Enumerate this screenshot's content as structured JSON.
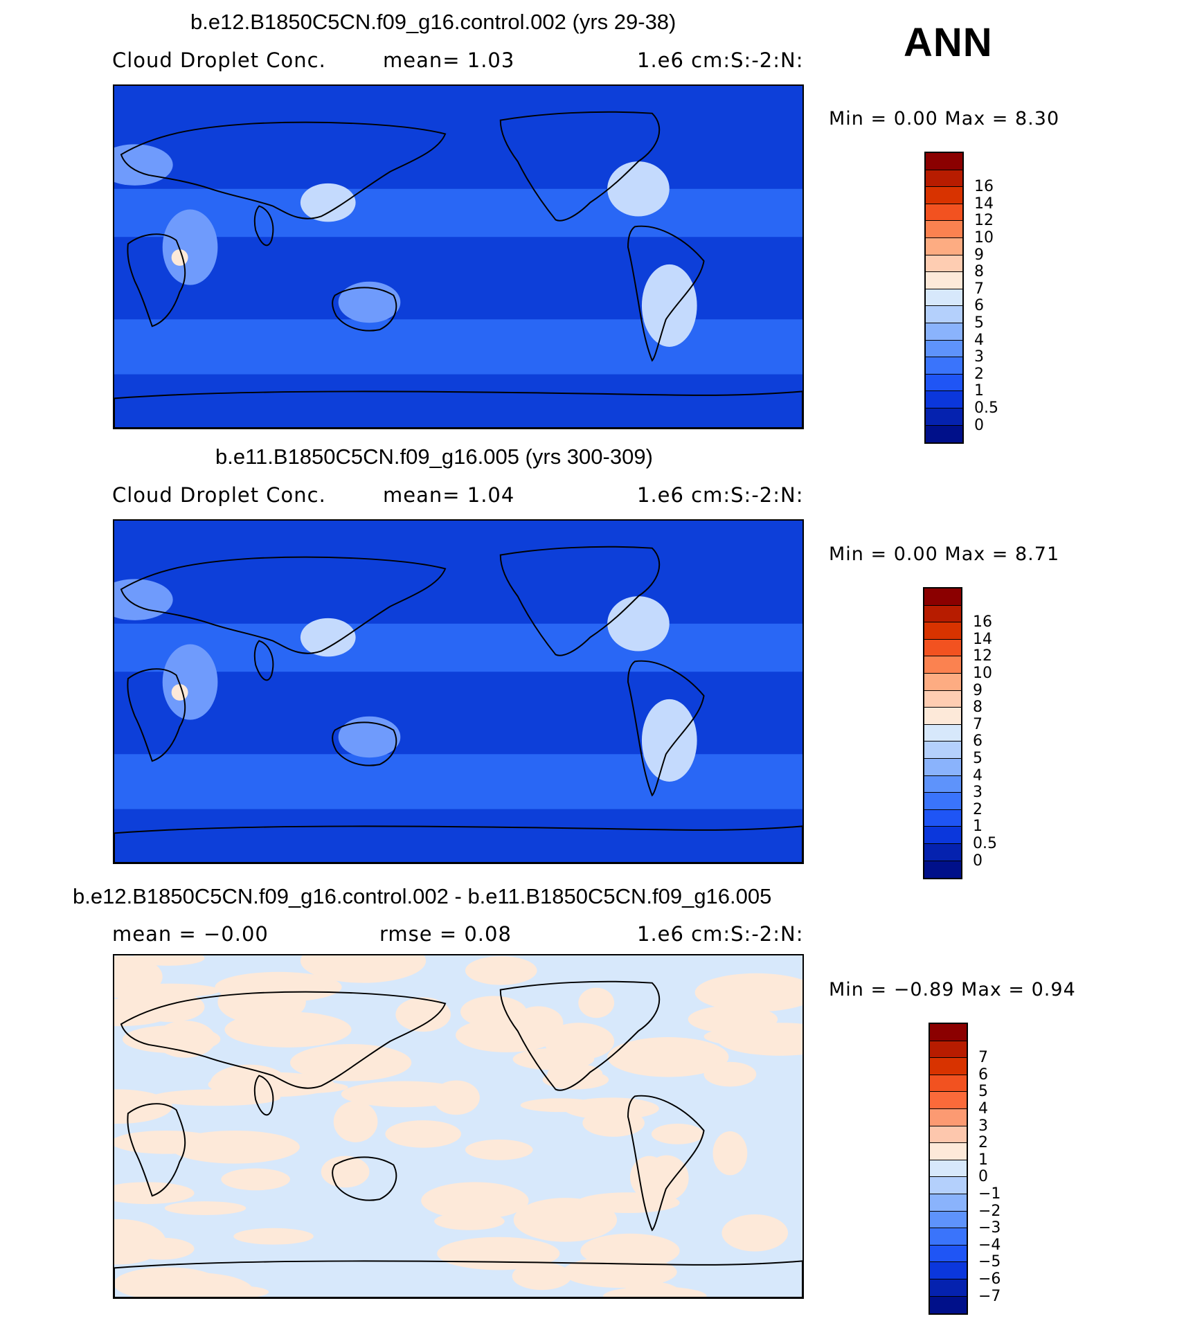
{
  "season": "ANN",
  "panels": [
    {
      "title": "b.e12.B1850C5CN.f09_g16.control.002 (yrs 29-38)",
      "left_label": "Cloud Droplet Conc.",
      "center_label": "mean=    1.03",
      "right_label": "1.e6 cm:S:-2:N:",
      "minmax": "Min =    0.00 Max =    8.30",
      "colorbar": {
        "colors": [
          "#8b0000",
          "#b71c00",
          "#d83300",
          "#f25220",
          "#fb8250",
          "#fdac82",
          "#fecdb2",
          "#fde9d9",
          "#d7e8fb",
          "#b4d0fc",
          "#8ab3fc",
          "#5e93fb",
          "#3a74fb",
          "#1f55f5",
          "#0b37dc",
          "#0522af",
          "#00108a"
        ],
        "labels": [
          "16",
          "14",
          "12",
          "10",
          "9",
          "8",
          "7",
          "6",
          "5",
          "4",
          "3",
          "2",
          "1",
          "0.5",
          "0"
        ]
      },
      "map_colors": [
        "#0d3fd9",
        "#2f6ef9",
        "#6f9bfc",
        "#c4dafd",
        "#fde9d9"
      ]
    },
    {
      "title": "b.e11.B1850C5CN.f09_g16.005 (yrs 300-309)",
      "left_label": "Cloud Droplet Conc.",
      "center_label": "mean=    1.04",
      "right_label": "1.e6 cm:S:-2:N:",
      "minmax": "Min =    0.00 Max =    8.71",
      "colorbar": {
        "colors": [
          "#8b0000",
          "#b71c00",
          "#d83300",
          "#f25220",
          "#fb8250",
          "#fdac82",
          "#fecdb2",
          "#fde9d9",
          "#d7e8fb",
          "#b4d0fc",
          "#8ab3fc",
          "#5e93fb",
          "#3a74fb",
          "#1f55f5",
          "#0b37dc",
          "#0522af",
          "#00108a"
        ],
        "labels": [
          "16",
          "14",
          "12",
          "10",
          "9",
          "8",
          "7",
          "6",
          "5",
          "4",
          "3",
          "2",
          "1",
          "0.5",
          "0"
        ]
      },
      "map_colors": [
        "#0d3fd9",
        "#2f6ef9",
        "#6f9bfc",
        "#c4dafd",
        "#fde9d9"
      ]
    },
    {
      "title": "b.e12.B1850C5CN.f09_g16.control.002 - b.e11.B1850C5CN.f09_g16.005",
      "left_label": "mean =   −0.00",
      "center_label": "rmse =    0.08",
      "right_label": "1.e6 cm:S:-2:N:",
      "minmax": "Min =   −0.89 Max =    0.94",
      "colorbar": {
        "colors": [
          "#8b0000",
          "#b71c00",
          "#d83300",
          "#f25220",
          "#fb6a3a",
          "#fc9a72",
          "#fdc7ad",
          "#fde9d9",
          "#d7e8fb",
          "#b4d0fc",
          "#8ab3fc",
          "#5e93fb",
          "#3a74fb",
          "#1f55f5",
          "#0b37dc",
          "#0522af",
          "#00108a"
        ],
        "labels": [
          "7",
          "6",
          "5",
          "4",
          "3",
          "2",
          "1",
          "0",
          "−1",
          "−2",
          "−3",
          "−4",
          "−5",
          "−6",
          "−7"
        ]
      },
      "map_colors": [
        "#d7e8fb",
        "#fde9d9"
      ]
    }
  ]
}
